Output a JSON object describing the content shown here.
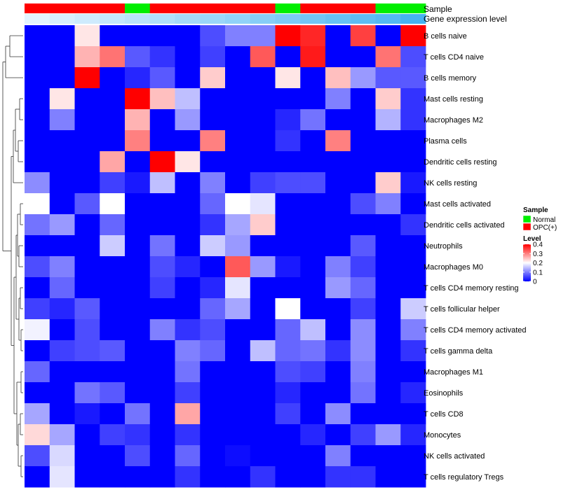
{
  "chart_data": {
    "type": "heatmap",
    "title": "",
    "annotation_labels": {
      "sample": "Sample",
      "gene_expression": "Gene expression level"
    },
    "columns": 16,
    "sample_groups": [
      "OPC(+)",
      "OPC(+)",
      "OPC(+)",
      "OPC(+)",
      "Normal",
      "OPC(+)",
      "OPC(+)",
      "OPC(+)",
      "OPC(+)",
      "OPC(+)",
      "Normal",
      "OPC(+)",
      "OPC(+)",
      "OPC(+)",
      "Normal",
      "Normal"
    ],
    "gene_expression_level": [
      0.02,
      0.08,
      0.14,
      0.2,
      0.26,
      0.32,
      0.38,
      0.44,
      0.5,
      0.56,
      0.62,
      0.68,
      0.74,
      0.8,
      0.86,
      0.94
    ],
    "sample_colors": {
      "Normal": "#00ee00",
      "OPC(+)": "#ff0000"
    },
    "rows": [
      "B cells naive",
      "T cells CD4 naive",
      "B cells memory",
      "Mast cells resting",
      "Macrophages M2",
      "Plasma cells",
      "Dendritic cells resting",
      "NK cells resting",
      "Mast cells activated",
      "Dendritic cells activated",
      "Neutrophils",
      "Macrophages M0",
      "T cells CD4 memory resting",
      "T cells follicular helper",
      "T cells CD4 memory activated",
      "T cells gamma delta",
      "Macrophages M1",
      "Eosinophils",
      "T cells CD8",
      "Monocytes",
      "NK cells activated",
      "T cells regulatory  Tregs"
    ],
    "values": [
      [
        0,
        0,
        0.22,
        0,
        0,
        0,
        0,
        0.06,
        0.1,
        0.1,
        0.4,
        0.37,
        0,
        0.35,
        0,
        0.4
      ],
      [
        0,
        0,
        0.26,
        0.31,
        0.07,
        0.04,
        0,
        0.05,
        0,
        0.33,
        0,
        0.38,
        0,
        0,
        0.31,
        0.06
      ],
      [
        0,
        0,
        0.4,
        0,
        0.03,
        0.07,
        0,
        0.24,
        0,
        0,
        0.22,
        0,
        0.25,
        0.12,
        0.07,
        0.07
      ],
      [
        0,
        0.22,
        0,
        0,
        0.4,
        0.25,
        0.15,
        0,
        0,
        0,
        0,
        0,
        0.1,
        0,
        0.24,
        0.04
      ],
      [
        0,
        0.1,
        0,
        0,
        0.26,
        0,
        0.12,
        0,
        0,
        0,
        0.03,
        0.09,
        0,
        0,
        0.14,
        0.04
      ],
      [
        0,
        0,
        0,
        0,
        0.3,
        0,
        0,
        0.3,
        0,
        0,
        0.04,
        0,
        0.3,
        0,
        0,
        0
      ],
      [
        0,
        0,
        0,
        0.27,
        0,
        0.4,
        0.22,
        0,
        0,
        0,
        0,
        0,
        0,
        0,
        0,
        0
      ],
      [
        0.11,
        0,
        0,
        0.05,
        0.02,
        0.15,
        0,
        0.1,
        0,
        0.05,
        0.06,
        0.06,
        0,
        0,
        0.24,
        0.02
      ],
      [
        0.2,
        0,
        0.07,
        0.2,
        0,
        0,
        0,
        0.08,
        0.2,
        0.18,
        0,
        0,
        0,
        0.06,
        0.1,
        0
      ],
      [
        0.09,
        0.12,
        0,
        0.08,
        0,
        0,
        0,
        0.04,
        0.13,
        0.24,
        0,
        0,
        0,
        0,
        0,
        0.04
      ],
      [
        0,
        0,
        0,
        0.16,
        0,
        0.09,
        0,
        0.16,
        0.12,
        0,
        0,
        0,
        0,
        0.07,
        0,
        0
      ],
      [
        0.06,
        0.1,
        0,
        0,
        0,
        0.06,
        0.03,
        0,
        0.33,
        0.12,
        0.02,
        0,
        0.1,
        0.05,
        0,
        0
      ],
      [
        0,
        0.08,
        0,
        0,
        0,
        0.05,
        0,
        0.03,
        0.18,
        0,
        0,
        0,
        0.12,
        0.08,
        0,
        0
      ],
      [
        0.05,
        0.03,
        0.07,
        0,
        0,
        0,
        0,
        0.08,
        0.13,
        0,
        0.2,
        0,
        0,
        0.05,
        0,
        0.16
      ],
      [
        0.19,
        0,
        0.06,
        0,
        0,
        0.1,
        0.04,
        0.06,
        0,
        0,
        0.08,
        0.15,
        0,
        0.11,
        0,
        0.1
      ],
      [
        0,
        0.05,
        0.06,
        0.07,
        0,
        0,
        0.1,
        0.08,
        0,
        0.15,
        0.08,
        0.09,
        0.04,
        0.11,
        0,
        0.04
      ],
      [
        0.08,
        0,
        0,
        0,
        0,
        0,
        0.09,
        0,
        0,
        0,
        0.06,
        0.05,
        0,
        0.1,
        0,
        0
      ],
      [
        0,
        0,
        0.09,
        0.07,
        0,
        0,
        0.05,
        0,
        0,
        0,
        0.03,
        0,
        0,
        0.09,
        0,
        0.03
      ],
      [
        0.13,
        0,
        0.02,
        0,
        0.09,
        0,
        0.27,
        0,
        0,
        0,
        0.05,
        0,
        0.11,
        0,
        0,
        0
      ],
      [
        0.23,
        0.13,
        0,
        0.05,
        0.04,
        0,
        0.04,
        0,
        0,
        0,
        0,
        0.03,
        0,
        0.05,
        0.12,
        0.03
      ],
      [
        0.06,
        0.17,
        0,
        0,
        0.06,
        0,
        0.08,
        0,
        0.01,
        0,
        0,
        0,
        0.1,
        0,
        0,
        0
      ],
      [
        0,
        0.18,
        0,
        0,
        0,
        0,
        0.04,
        0,
        0,
        0.04,
        0,
        0,
        0.04,
        0.04,
        0,
        0
      ]
    ],
    "color_scale": {
      "min": 0,
      "max": 0.4,
      "low": "#0000ff",
      "mid": "#ffffff",
      "high": "#ff0000",
      "midpoint": 0.2
    },
    "legend": {
      "position": "right",
      "sample_title": "Sample",
      "sample_entries": [
        {
          "label": "Normal",
          "color": "#00ee00"
        },
        {
          "label": "OPC(+)",
          "color": "#ff0000"
        }
      ],
      "level_title": "Level",
      "level_ticks": [
        "0.4",
        "0.3",
        "0.2",
        "0.1",
        "0"
      ]
    },
    "row_dendrogram": true
  }
}
